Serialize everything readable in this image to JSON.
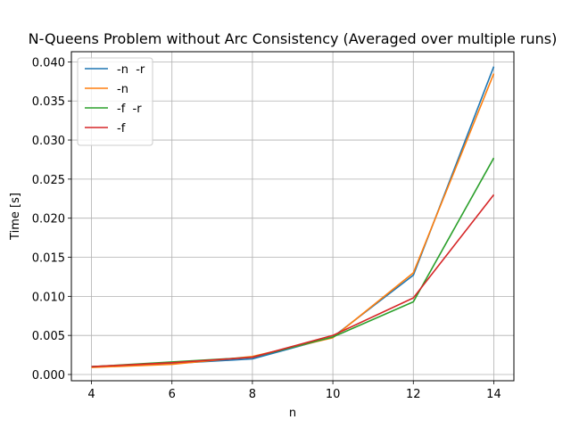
{
  "chart_data": {
    "type": "line",
    "title": "N-Queens Problem without Arc Consistency (Averaged over multiple runs)",
    "xlabel": "n",
    "ylabel": "Time [s]",
    "x": [
      4,
      6,
      8,
      10,
      12,
      14
    ],
    "xlim": [
      3.5,
      14.5
    ],
    "ylim": [
      -0.0008,
      0.0413
    ],
    "xticks": [
      4,
      6,
      8,
      10,
      12,
      14
    ],
    "yticks": [
      0.0,
      0.005,
      0.01,
      0.015,
      0.02,
      0.025,
      0.03,
      0.035,
      0.04
    ],
    "ytick_labels": [
      "0.000",
      "0.005",
      "0.010",
      "0.015",
      "0.020",
      "0.025",
      "0.030",
      "0.035",
      "0.040"
    ],
    "grid": true,
    "legend_position": "top-left",
    "series": [
      {
        "name": "-n  -r",
        "color": "#1f77b4",
        "values": [
          0.001,
          0.0014,
          0.002,
          0.0048,
          0.0127,
          0.0394
        ]
      },
      {
        "name": "-n",
        "color": "#ff7f0e",
        "values": [
          0.0009,
          0.0013,
          0.0023,
          0.0047,
          0.013,
          0.0385
        ]
      },
      {
        "name": "-f  -r",
        "color": "#2ca02c",
        "values": [
          0.001,
          0.0016,
          0.0022,
          0.0048,
          0.0093,
          0.0277
        ]
      },
      {
        "name": "-f",
        "color": "#d62728",
        "values": [
          0.001,
          0.0015,
          0.0022,
          0.005,
          0.0098,
          0.023
        ]
      }
    ]
  }
}
